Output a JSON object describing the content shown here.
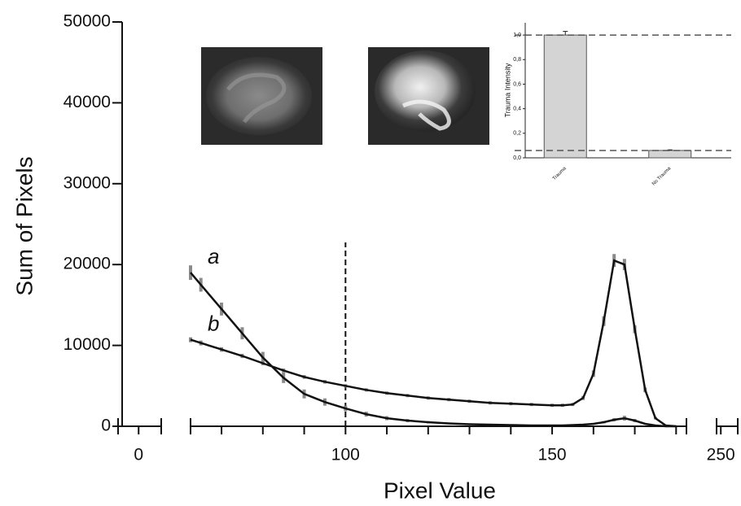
{
  "chart_data": [
    {
      "type": "line",
      "y_label": "Sum of Pixels",
      "x_label": "Pixel Value",
      "ylim": [
        0,
        50000
      ],
      "yticks": [
        0,
        10000,
        20000,
        30000,
        40000,
        50000
      ],
      "x_segments": [
        {
          "xlim": [
            -5,
            5.5
          ]
        },
        {
          "xlim": [
            62.5,
            182.5
          ]
        },
        {
          "xlim": [
            249,
            254
          ]
        }
      ],
      "xticks": [
        0,
        100,
        150,
        250
      ],
      "xminor_ticks": [
        70,
        80,
        90,
        110,
        120,
        130,
        140,
        160,
        170,
        180
      ],
      "vline_x": 100,
      "error_color": "#8a8a8a",
      "x": [
        62.5,
        65,
        70,
        75,
        80,
        85,
        90,
        95,
        100,
        105,
        110,
        115,
        120,
        125,
        130,
        135,
        140,
        145,
        150,
        152.5,
        155,
        157.5,
        160,
        162.5,
        165,
        167.5,
        170,
        172.5,
        175,
        177.5,
        180
      ],
      "series": [
        {
          "name": "a",
          "color": "#111111",
          "values": [
            19000,
            17500,
            14500,
            11500,
            8500,
            6000,
            4000,
            3000,
            2200,
            1500,
            1000,
            700,
            500,
            350,
            250,
            200,
            150,
            100,
            100,
            100,
            150,
            200,
            300,
            500,
            800,
            1000,
            700,
            300,
            100,
            0,
            0
          ],
          "errors": [
            900,
            850,
            800,
            750,
            700,
            650,
            550,
            450,
            350,
            300,
            250,
            200,
            150,
            100,
            100,
            100,
            100,
            100,
            100,
            100,
            100,
            100,
            100,
            150,
            200,
            300,
            200,
            100,
            50,
            0,
            0
          ]
        },
        {
          "name": "b",
          "color": "#111111",
          "values": [
            10700,
            10300,
            9500,
            8700,
            7800,
            6900,
            6100,
            5500,
            5000,
            4500,
            4100,
            3800,
            3500,
            3300,
            3100,
            2900,
            2800,
            2700,
            2600,
            2600,
            2700,
            3500,
            6500,
            13000,
            20500,
            20000,
            12000,
            4500,
            1000,
            100,
            0
          ],
          "errors": [
            300,
            300,
            280,
            260,
            250,
            240,
            230,
            220,
            200,
            200,
            200,
            200,
            200,
            200,
            200,
            200,
            200,
            200,
            200,
            200,
            200,
            250,
            400,
            600,
            800,
            700,
            500,
            300,
            150,
            50,
            0
          ]
        }
      ]
    },
    {
      "type": "bar",
      "y_label": "Trauma Intensity",
      "categories": [
        "Trauma",
        "No Trauma"
      ],
      "values": [
        1,
        0.06
      ],
      "errors": [
        0.03,
        0.005
      ],
      "color": "#d4d4d4",
      "ylim": [
        0,
        1.1
      ],
      "yticks": [
        {
          "value": 0,
          "label": "0,0"
        },
        {
          "value": 0.2,
          "label": "0,2"
        },
        {
          "value": 0.4,
          "label": "0,4"
        },
        {
          "value": 0.6,
          "label": "0,6"
        },
        {
          "value": 0.8,
          "label": "0,8"
        },
        {
          "value": 1,
          "label": "1,0"
        }
      ],
      "reference_lines": [
        1,
        0.06
      ]
    }
  ]
}
